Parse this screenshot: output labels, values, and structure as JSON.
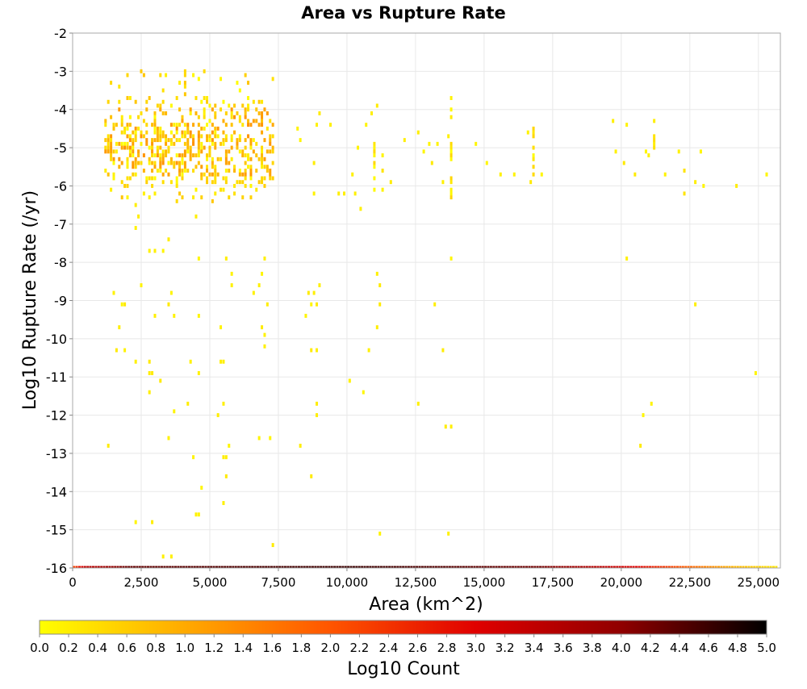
{
  "chart_data": {
    "type": "heatmap",
    "title": "Area vs Rupture Rate",
    "xlabel": "Area (km^2)",
    "ylabel": "Log10 Rupture Rate (/yr)",
    "xlim": [
      0,
      25800
    ],
    "ylim": [
      -16,
      -2
    ],
    "x_ticks": [
      0,
      2500,
      5000,
      7500,
      10000,
      12500,
      15000,
      17500,
      20000,
      22500,
      25000
    ],
    "x_tick_labels": [
      "0",
      "2,500",
      "5,000",
      "7,500",
      "10,000",
      "12,500",
      "15,000",
      "17,500",
      "20,000",
      "22,500",
      "25,000"
    ],
    "y_ticks": [
      -2,
      -3,
      -4,
      -5,
      -6,
      -7,
      -8,
      -9,
      -10,
      -11,
      -12,
      -13,
      -14,
      -15,
      -16
    ],
    "y_tick_labels": [
      "-2",
      "-3",
      "-4",
      "-5",
      "-6",
      "-7",
      "-8",
      "-9",
      "-10",
      "-11",
      "-12",
      "-13",
      "-14",
      "-15",
      "-16"
    ],
    "grid": true,
    "colorbar": {
      "label": "Log10 Count",
      "range": [
        0,
        5
      ],
      "ticks": [
        0.0,
        0.2,
        0.4,
        0.6,
        0.8,
        1.0,
        1.2,
        1.4,
        1.6,
        1.8,
        2.0,
        2.2,
        2.4,
        2.6,
        2.8,
        3.0,
        3.2,
        3.4,
        3.6,
        3.8,
        4.0,
        4.2,
        4.4,
        4.6,
        4.8,
        5.0
      ],
      "tick_labels": [
        "0.0",
        "0.2",
        "0.4",
        "0.6",
        "0.8",
        "1.0",
        "1.2",
        "1.4",
        "1.6",
        "1.8",
        "2.0",
        "2.2",
        "2.4",
        "2.6",
        "2.8",
        "3.0",
        "3.2",
        "3.4",
        "3.6",
        "3.8",
        "4.0",
        "4.2",
        "4.4",
        "4.6",
        "4.8",
        "5.0"
      ],
      "colors": [
        "#ffff00",
        "#ffaa00",
        "#ff5500",
        "#e00000",
        "#900000",
        "#000000"
      ]
    },
    "cell_size": {
      "area": 100,
      "log_rate": 0.1
    },
    "bottom_row": {
      "log_rate": -16,
      "area_range": [
        0,
        25600
      ],
      "profile": [
        {
          "area": 0,
          "log_count": 2.2
        },
        {
          "area": 400,
          "log_count": 3.4
        },
        {
          "area": 2000,
          "log_count": 4.3
        },
        {
          "area": 10000,
          "log_count": 4.6
        },
        {
          "area": 17000,
          "log_count": 4.2
        },
        {
          "area": 20500,
          "log_count": 3.0
        },
        {
          "area": 22500,
          "log_count": 1.8
        },
        {
          "area": 24000,
          "log_count": 0.9
        },
        {
          "area": 25600,
          "log_count": 0.3
        }
      ]
    },
    "dense_region": {
      "area_range": [
        1200,
        7300
      ],
      "log_rate_range": [
        -6.4,
        -3.0
      ]
    },
    "columns": [
      {
        "area": 11000,
        "log_rate_range": [
          -6.3,
          -4.9
        ]
      },
      {
        "area": 11300,
        "log_rate_range": [
          -6.1,
          -5.0
        ]
      },
      {
        "area": 13800,
        "log_rate_range": [
          -6.4,
          -4.0
        ]
      },
      {
        "area": 16800,
        "log_rate_range": [
          -5.7,
          -4.2
        ]
      },
      {
        "area": 21200,
        "log_rate_range": [
          -5.2,
          -4.2
        ]
      },
      {
        "area": 22300,
        "log_rate_range": [
          -6.4,
          -5.5
        ]
      }
    ],
    "points": [
      [
        8200,
        -4.5
      ],
      [
        8300,
        -4.8
      ],
      [
        8800,
        -5.4
      ],
      [
        8900,
        -4.4
      ],
      [
        9000,
        -4.1
      ],
      [
        8800,
        -6.2
      ],
      [
        9400,
        -4.4
      ],
      [
        9700,
        -6.2
      ],
      [
        9900,
        -6.2
      ],
      [
        10200,
        -5.7
      ],
      [
        10300,
        -6.2
      ],
      [
        10400,
        -5.0
      ],
      [
        10500,
        -6.6
      ],
      [
        10700,
        -4.4
      ],
      [
        10900,
        -4.1
      ],
      [
        11100,
        -3.9
      ],
      [
        11600,
        -5.9
      ],
      [
        12100,
        -4.8
      ],
      [
        12600,
        -4.6
      ],
      [
        12800,
        -5.1
      ],
      [
        13000,
        -4.9
      ],
      [
        13100,
        -5.4
      ],
      [
        13300,
        -4.9
      ],
      [
        13500,
        -5.9
      ],
      [
        13700,
        -4.7
      ],
      [
        13800,
        -3.7
      ],
      [
        14700,
        -4.9
      ],
      [
        15100,
        -5.4
      ],
      [
        15600,
        -5.7
      ],
      [
        16100,
        -5.7
      ],
      [
        16600,
        -4.6
      ],
      [
        16700,
        -5.9
      ],
      [
        17100,
        -5.7
      ],
      [
        19700,
        -4.3
      ],
      [
        19800,
        -5.1
      ],
      [
        20100,
        -5.4
      ],
      [
        20200,
        -4.4
      ],
      [
        20500,
        -5.7
      ],
      [
        20900,
        -5.1
      ],
      [
        21000,
        -5.2
      ],
      [
        21600,
        -5.7
      ],
      [
        22100,
        -5.1
      ],
      [
        22700,
        -5.9
      ],
      [
        22900,
        -5.1
      ],
      [
        23000,
        -6.0
      ],
      [
        24200,
        -6.0
      ],
      [
        25300,
        -5.7
      ],
      [
        2300,
        -6.5
      ],
      [
        2400,
        -6.8
      ],
      [
        2300,
        -7.1
      ],
      [
        4500,
        -6.8
      ],
      [
        4500,
        -6.1
      ],
      [
        3000,
        -6.2
      ],
      [
        2800,
        -7.7
      ],
      [
        3000,
        -7.7
      ],
      [
        3300,
        -7.7
      ],
      [
        3500,
        -7.4
      ],
      [
        4600,
        -7.9
      ],
      [
        5600,
        -7.9
      ],
      [
        5800,
        -8.3
      ],
      [
        5800,
        -8.6
      ],
      [
        7000,
        -7.9
      ],
      [
        6900,
        -8.3
      ],
      [
        6800,
        -8.6
      ],
      [
        9000,
        -8.6
      ],
      [
        11100,
        -8.3
      ],
      [
        11200,
        -8.6
      ],
      [
        13800,
        -7.9
      ],
      [
        20200,
        -7.9
      ],
      [
        1500,
        -8.8
      ],
      [
        1800,
        -9.1
      ],
      [
        1900,
        -9.1
      ],
      [
        2500,
        -8.6
      ],
      [
        3000,
        -9.4
      ],
      [
        3500,
        -9.1
      ],
      [
        3600,
        -8.8
      ],
      [
        3700,
        -9.4
      ],
      [
        4600,
        -9.4
      ],
      [
        6600,
        -8.8
      ],
      [
        7100,
        -9.1
      ],
      [
        8600,
        -8.8
      ],
      [
        8700,
        -9.1
      ],
      [
        8800,
        -8.8
      ],
      [
        8900,
        -9.1
      ],
      [
        11200,
        -9.1
      ],
      [
        13200,
        -9.1
      ],
      [
        22700,
        -9.1
      ],
      [
        1700,
        -9.7
      ],
      [
        1600,
        -10.3
      ],
      [
        1900,
        -10.3
      ],
      [
        2300,
        -10.6
      ],
      [
        2800,
        -10.6
      ],
      [
        2800,
        -10.9
      ],
      [
        2900,
        -10.9
      ],
      [
        3200,
        -11.1
      ],
      [
        4300,
        -10.6
      ],
      [
        4600,
        -10.9
      ],
      [
        5400,
        -10.6
      ],
      [
        5500,
        -10.6
      ],
      [
        5400,
        -9.7
      ],
      [
        6900,
        -9.7
      ],
      [
        7000,
        -9.9
      ],
      [
        7000,
        -10.2
      ],
      [
        8500,
        -9.4
      ],
      [
        8700,
        -10.3
      ],
      [
        8900,
        -10.3
      ],
      [
        11100,
        -9.7
      ],
      [
        10800,
        -10.3
      ],
      [
        13500,
        -10.3
      ],
      [
        24900,
        -10.9
      ],
      [
        2800,
        -11.4
      ],
      [
        3700,
        -11.9
      ],
      [
        4200,
        -11.7
      ],
      [
        5300,
        -12.0
      ],
      [
        5500,
        -11.7
      ],
      [
        8900,
        -11.7
      ],
      [
        8900,
        -12.0
      ],
      [
        10100,
        -11.1
      ],
      [
        10600,
        -11.4
      ],
      [
        12600,
        -11.7
      ],
      [
        13600,
        -12.3
      ],
      [
        13800,
        -12.3
      ],
      [
        20800,
        -12.0
      ],
      [
        21100,
        -11.7
      ],
      [
        20700,
        -12.8
      ],
      [
        1300,
        -12.8
      ],
      [
        3500,
        -12.6
      ],
      [
        4400,
        -13.1
      ],
      [
        5500,
        -13.1
      ],
      [
        5600,
        -13.1
      ],
      [
        5700,
        -12.8
      ],
      [
        6800,
        -12.6
      ],
      [
        7200,
        -12.6
      ],
      [
        8300,
        -12.8
      ],
      [
        4700,
        -13.9
      ],
      [
        5600,
        -13.6
      ],
      [
        5500,
        -14.3
      ],
      [
        8700,
        -13.6
      ],
      [
        4500,
        -14.6
      ],
      [
        4600,
        -14.6
      ],
      [
        2300,
        -14.8
      ],
      [
        2900,
        -14.8
      ],
      [
        11200,
        -15.1
      ],
      [
        13700,
        -15.1
      ],
      [
        7300,
        -15.4
      ],
      [
        3300,
        -15.7
      ],
      [
        3600,
        -15.7
      ]
    ]
  }
}
